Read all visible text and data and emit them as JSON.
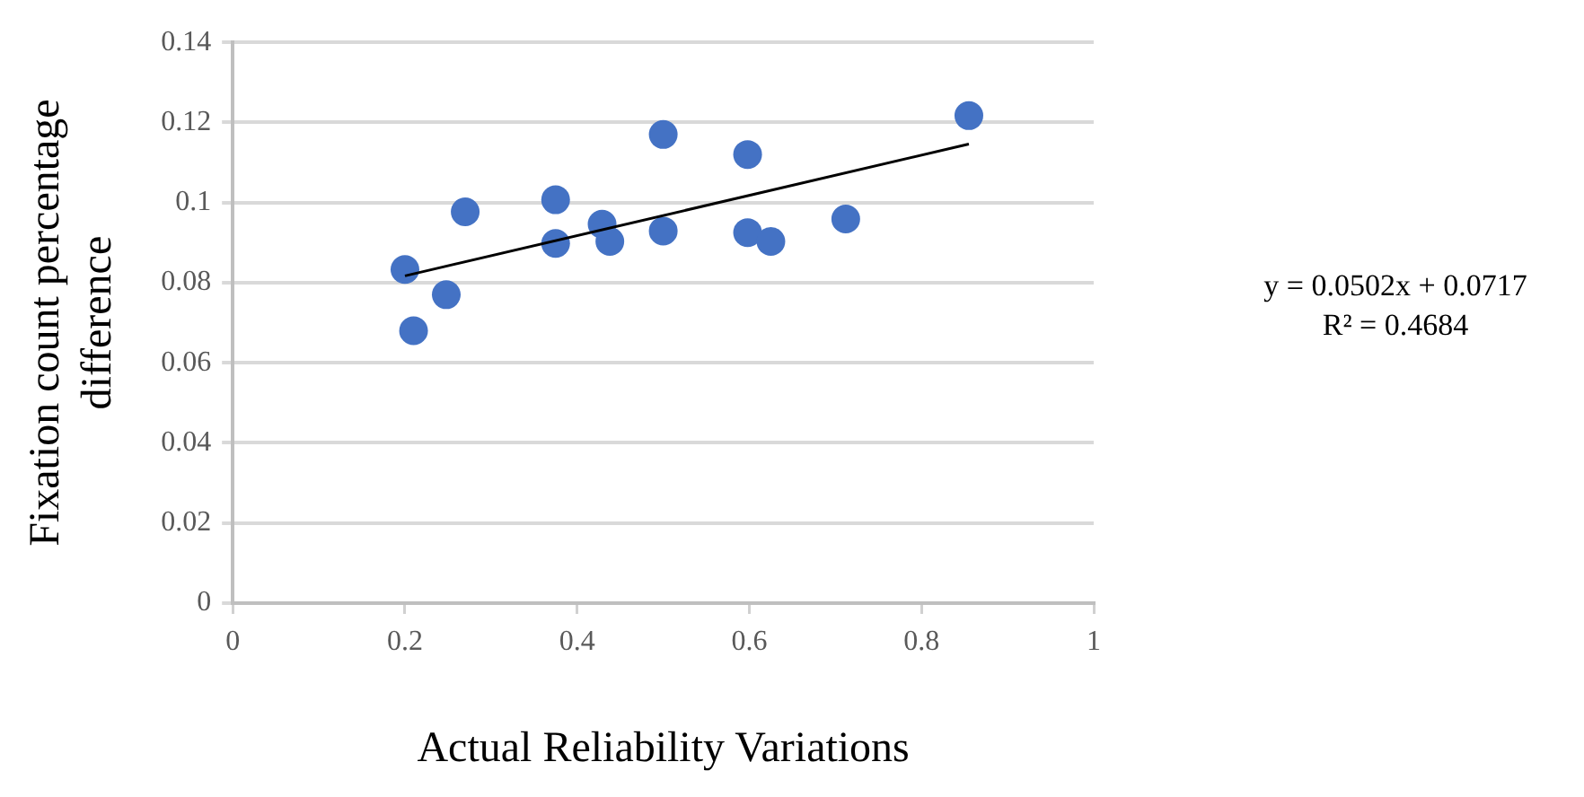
{
  "chart_data": {
    "type": "scatter",
    "xlabel": "Actual Reliability Variations",
    "ylabel": "Fixation count percentage difference",
    "xlim": [
      0,
      1
    ],
    "xticks": [
      0,
      0.2,
      0.4,
      0.6,
      0.8,
      1
    ],
    "ylim": [
      0,
      0.14
    ],
    "yticks": [
      0,
      0.02,
      0.04,
      0.06,
      0.08,
      0.1,
      0.12,
      0.14
    ],
    "grid": "y",
    "legend": false,
    "marker": "circle",
    "series": [
      {
        "color": "#4472c4",
        "x": [
          0.2,
          0.21,
          0.248,
          0.27,
          0.375,
          0.375,
          0.429,
          0.438,
          0.5,
          0.5,
          0.598,
          0.598,
          0.625,
          0.712,
          0.855
        ],
        "values": [
          0.0833,
          0.068,
          0.077,
          0.0977,
          0.1007,
          0.0898,
          0.0946,
          0.0903,
          0.117,
          0.0929,
          0.112,
          0.0925,
          0.0903,
          0.0959,
          0.1217
        ]
      },
      {
        "type": "line",
        "color": "#000000",
        "marker": "none",
        "x": [
          0.2,
          0.855
        ],
        "values": [
          0.0817,
          0.1146
        ]
      }
    ],
    "annotations": [
      "y = 0.0502x + 0.0717",
      "R² = 0.4684"
    ]
  }
}
